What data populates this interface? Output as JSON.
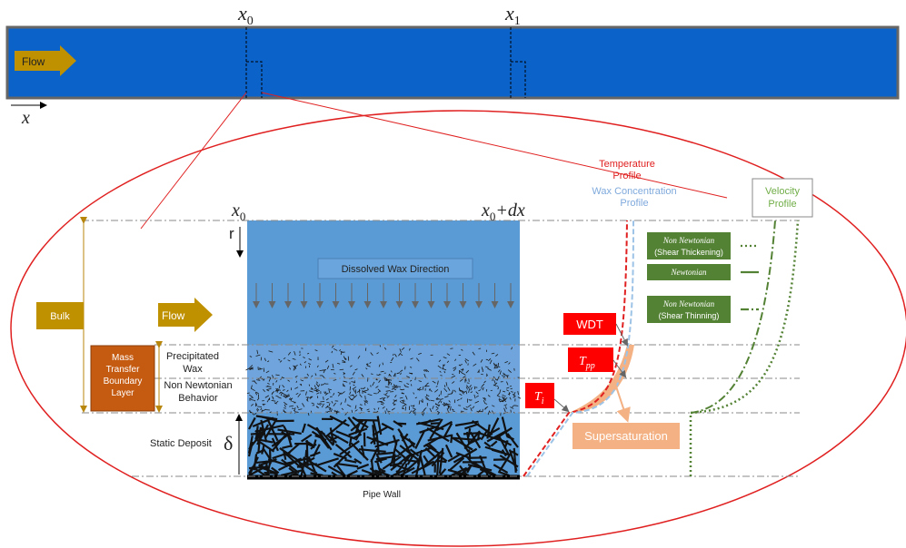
{
  "top_pipe": {
    "x0": {
      "base": "x",
      "sub": "0"
    },
    "x1": {
      "base": "x",
      "sub": "1"
    },
    "flow": "Flow",
    "axis": "x"
  },
  "detail": {
    "x0": {
      "base": "x",
      "sub": "0"
    },
    "x0dx": {
      "base": "x",
      "sub": "0",
      "rest": "+dx"
    },
    "r": "r",
    "dissolved": "Dissolved Wax Direction",
    "bulk": "Bulk",
    "flow": "Flow",
    "mass_transfer": [
      "Mass",
      "Transfer",
      "Boundary",
      "Layer"
    ],
    "precipitated": [
      "Precipitated",
      "Wax"
    ],
    "non_newtonian_behavior": [
      "Non Newtonian",
      "Behavior"
    ],
    "static_deposit": "Static Deposit",
    "delta": "δ",
    "pipe_wall": "Pipe Wall",
    "temperature_profile": [
      "Temperature",
      "Profile"
    ],
    "wax_profile": [
      "Wax Concentration",
      "Profile"
    ],
    "velocity_profile": [
      "Velocity",
      "Profile"
    ],
    "legend": [
      {
        "name": "Non Newtonian",
        "note": "(Shear Thickening)"
      },
      {
        "name": "Newtonian"
      },
      {
        "name": "Non Newtonian",
        "note": "(Shear Thinning)"
      }
    ],
    "wdt": "WDT",
    "tpp": {
      "base": "T",
      "sub": "pp"
    },
    "ti": {
      "base": "T",
      "sub": "i"
    },
    "supersaturation": "Supersaturation"
  }
}
